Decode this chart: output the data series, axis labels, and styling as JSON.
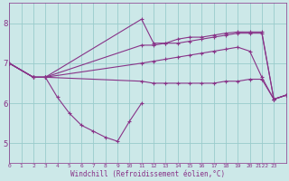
{
  "background_color": "#cce8e8",
  "line_color": "#883388",
  "grid_color": "#99cccc",
  "xlabel": "Windchill (Refroidissement éolien,°C)",
  "xlim": [
    0,
    23
  ],
  "ylim": [
    4.5,
    8.5
  ],
  "yticks": [
    5,
    6,
    7,
    8
  ],
  "xtick_labels": [
    "0",
    "1",
    "2",
    "3",
    "4",
    "5",
    "6",
    "7",
    "8",
    "9",
    "10",
    "11",
    "12",
    "13",
    "14",
    "15",
    "16",
    "17",
    "18",
    "19",
    "20",
    "21",
    "2223"
  ],
  "lines": [
    {
      "x": [
        0,
        2,
        3,
        4,
        5,
        6,
        7,
        8,
        9,
        10,
        11
      ],
      "y": [
        7.0,
        6.65,
        6.65,
        6.15,
        5.75,
        5.45,
        5.3,
        5.15,
        5.05,
        5.55,
        6.0
      ]
    },
    {
      "x": [
        0,
        2,
        3,
        11,
        12,
        13,
        14,
        15,
        16,
        17,
        18,
        19,
        20,
        21,
        22,
        23
      ],
      "y": [
        7.0,
        6.65,
        6.65,
        6.55,
        6.5,
        6.5,
        6.5,
        6.5,
        6.5,
        6.5,
        6.55,
        6.55,
        6.6,
        6.6,
        6.1,
        6.2
      ]
    },
    {
      "x": [
        0,
        2,
        3,
        11,
        12,
        13,
        14,
        15,
        16,
        17,
        18,
        19,
        20,
        21,
        22,
        23
      ],
      "y": [
        7.0,
        6.65,
        6.65,
        7.0,
        7.05,
        7.1,
        7.15,
        7.2,
        7.25,
        7.3,
        7.35,
        7.4,
        7.3,
        6.65,
        6.1,
        6.2
      ]
    },
    {
      "x": [
        0,
        2,
        3,
        11,
        12,
        13,
        14,
        15,
        16,
        17,
        18,
        19,
        20,
        21,
        22,
        23
      ],
      "y": [
        7.0,
        6.65,
        6.65,
        7.45,
        7.45,
        7.5,
        7.5,
        7.55,
        7.6,
        7.65,
        7.7,
        7.75,
        7.75,
        7.75,
        6.1,
        6.2
      ]
    },
    {
      "x": [
        0,
        2,
        3,
        11,
        12,
        13,
        14,
        15,
        16,
        17,
        18,
        19,
        20,
        21,
        22,
        23
      ],
      "y": [
        7.0,
        6.65,
        6.65,
        8.1,
        7.5,
        7.5,
        7.6,
        7.65,
        7.65,
        7.7,
        7.75,
        7.78,
        7.78,
        7.78,
        6.1,
        6.2
      ]
    }
  ]
}
